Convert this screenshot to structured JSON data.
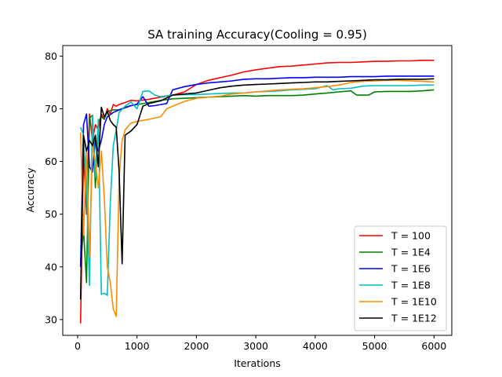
{
  "chart_data": {
    "type": "line",
    "title": "SA training Accuracy(Cooling = 0.95)",
    "xlabel": "Iterations",
    "ylabel": "Accuracy",
    "xlim": [
      -250,
      6300
    ],
    "ylim": [
      27,
      82
    ],
    "xticks": [
      0,
      1000,
      2000,
      3000,
      4000,
      5000,
      6000
    ],
    "yticks": [
      30,
      40,
      50,
      60,
      70,
      80
    ],
    "grid": false,
    "legend_position": "lower-right",
    "series": [
      {
        "name": "T = 100",
        "color": "#ff0000",
        "points": [
          [
            50,
            29.3
          ],
          [
            100,
            62
          ],
          [
            150,
            50
          ],
          [
            200,
            69
          ],
          [
            250,
            64
          ],
          [
            300,
            67
          ],
          [
            350,
            66
          ],
          [
            400,
            69
          ],
          [
            450,
            68
          ],
          [
            500,
            70
          ],
          [
            550,
            69
          ],
          [
            600,
            70.8
          ],
          [
            650,
            70.5
          ],
          [
            700,
            70.8
          ],
          [
            800,
            71.2
          ],
          [
            900,
            71.6
          ],
          [
            1000,
            71.5
          ],
          [
            1200,
            71.8
          ],
          [
            1400,
            72.2
          ],
          [
            1600,
            72.6
          ],
          [
            1800,
            73.2
          ],
          [
            2000,
            74.6
          ],
          [
            2200,
            75.4
          ],
          [
            2400,
            75.9
          ],
          [
            2600,
            76.4
          ],
          [
            2800,
            77
          ],
          [
            3000,
            77.4
          ],
          [
            3200,
            77.7
          ],
          [
            3400,
            78
          ],
          [
            3600,
            78.1
          ],
          [
            3800,
            78.3
          ],
          [
            4000,
            78.5
          ],
          [
            4200,
            78.7
          ],
          [
            4400,
            78.8
          ],
          [
            4600,
            78.8
          ],
          [
            4800,
            78.9
          ],
          [
            5000,
            79
          ],
          [
            5200,
            79
          ],
          [
            5400,
            79.1
          ],
          [
            5600,
            79.1
          ],
          [
            5800,
            79.2
          ],
          [
            6000,
            79.2
          ]
        ]
      },
      {
        "name": "T = 1E4",
        "color": "#008000",
        "points": [
          [
            50,
            40.5
          ],
          [
            100,
            47
          ],
          [
            150,
            37
          ],
          [
            200,
            68.2
          ],
          [
            250,
            68.8
          ],
          [
            300,
            55
          ],
          [
            350,
            67.5
          ],
          [
            400,
            68.5
          ],
          [
            450,
            68
          ],
          [
            500,
            69.5
          ],
          [
            600,
            69.8
          ],
          [
            700,
            69.8
          ],
          [
            800,
            70.3
          ],
          [
            900,
            70.6
          ],
          [
            1000,
            70.8
          ],
          [
            1200,
            71.2
          ],
          [
            1400,
            71.6
          ],
          [
            1600,
            71.9
          ],
          [
            1800,
            72
          ],
          [
            2000,
            72.1
          ],
          [
            2200,
            72.2
          ],
          [
            2400,
            72.3
          ],
          [
            2600,
            72.4
          ],
          [
            2800,
            72.5
          ],
          [
            3000,
            72.4
          ],
          [
            3200,
            72.5
          ],
          [
            3400,
            72.5
          ],
          [
            3600,
            72.5
          ],
          [
            3800,
            72.6
          ],
          [
            4000,
            72.8
          ],
          [
            4200,
            73
          ],
          [
            4400,
            73.2
          ],
          [
            4600,
            73.4
          ],
          [
            4700,
            72.6
          ],
          [
            4900,
            72.6
          ],
          [
            5000,
            73.2
          ],
          [
            5200,
            73.3
          ],
          [
            5400,
            73.3
          ],
          [
            5600,
            73.3
          ],
          [
            5800,
            73.4
          ],
          [
            6000,
            73.6
          ]
        ]
      },
      {
        "name": "T = 1E6",
        "color": "#0000ff",
        "points": [
          [
            50,
            40
          ],
          [
            100,
            67
          ],
          [
            150,
            69
          ],
          [
            200,
            59
          ],
          [
            250,
            58
          ],
          [
            300,
            64
          ],
          [
            350,
            62
          ],
          [
            400,
            64
          ],
          [
            450,
            67
          ],
          [
            500,
            68.5
          ],
          [
            600,
            69.3
          ],
          [
            700,
            69.8
          ],
          [
            800,
            70.2
          ],
          [
            900,
            70.6
          ],
          [
            1000,
            70.9
          ],
          [
            1100,
            72.3
          ],
          [
            1200,
            70.5
          ],
          [
            1300,
            70.6
          ],
          [
            1400,
            70.8
          ],
          [
            1500,
            71
          ],
          [
            1600,
            73.6
          ],
          [
            1800,
            74.2
          ],
          [
            2000,
            74.6
          ],
          [
            2200,
            74.9
          ],
          [
            2400,
            75.1
          ],
          [
            2600,
            75.3
          ],
          [
            2800,
            75.6
          ],
          [
            3000,
            75.7
          ],
          [
            3200,
            75.7
          ],
          [
            3400,
            75.8
          ],
          [
            3600,
            75.9
          ],
          [
            3800,
            75.9
          ],
          [
            4000,
            76
          ],
          [
            4200,
            76
          ],
          [
            4400,
            76
          ],
          [
            4600,
            76.1
          ],
          [
            4800,
            76.1
          ],
          [
            5000,
            76.1
          ],
          [
            5200,
            76.2
          ],
          [
            5400,
            76.2
          ],
          [
            5600,
            76.2
          ],
          [
            5800,
            76.2
          ],
          [
            6000,
            76.2
          ]
        ]
      },
      {
        "name": "T = 1E8",
        "color": "#00bfbf",
        "points": [
          [
            50,
            66.5
          ],
          [
            100,
            65
          ],
          [
            150,
            55
          ],
          [
            200,
            36.5
          ],
          [
            250,
            68.8
          ],
          [
            300,
            57
          ],
          [
            350,
            68
          ],
          [
            400,
            34.8
          ],
          [
            450,
            35
          ],
          [
            500,
            34.6
          ],
          [
            550,
            52
          ],
          [
            600,
            63
          ],
          [
            650,
            66
          ],
          [
            700,
            69.3
          ],
          [
            800,
            70.5
          ],
          [
            900,
            71.3
          ],
          [
            1000,
            70
          ],
          [
            1100,
            73.3
          ],
          [
            1200,
            73.4
          ],
          [
            1300,
            72.6
          ],
          [
            1400,
            72.3
          ],
          [
            1600,
            72.6
          ],
          [
            1800,
            72.7
          ],
          [
            2000,
            72.7
          ],
          [
            2200,
            72.8
          ],
          [
            2400,
            72.9
          ],
          [
            2600,
            73
          ],
          [
            2800,
            73
          ],
          [
            3000,
            73.2
          ],
          [
            3200,
            73.3
          ],
          [
            3400,
            73.4
          ],
          [
            3600,
            73.6
          ],
          [
            3800,
            73.7
          ],
          [
            4000,
            73.8
          ],
          [
            4200,
            74.4
          ],
          [
            4300,
            73.6
          ],
          [
            4400,
            73.8
          ],
          [
            4600,
            73.9
          ],
          [
            4800,
            74.3
          ],
          [
            5000,
            74.4
          ],
          [
            5200,
            74.4
          ],
          [
            5400,
            74.4
          ],
          [
            5600,
            74.4
          ],
          [
            5800,
            74.5
          ],
          [
            6000,
            74.5
          ]
        ]
      },
      {
        "name": "T = 1E10",
        "color": "#ff8c00",
        "points": [
          [
            50,
            65.5
          ],
          [
            100,
            46
          ],
          [
            150,
            62
          ],
          [
            200,
            42
          ],
          [
            250,
            63
          ],
          [
            300,
            60
          ],
          [
            350,
            55
          ],
          [
            400,
            62
          ],
          [
            450,
            53
          ],
          [
            500,
            40
          ],
          [
            550,
            37
          ],
          [
            600,
            32
          ],
          [
            650,
            30.6
          ],
          [
            700,
            57
          ],
          [
            750,
            64
          ],
          [
            800,
            66
          ],
          [
            900,
            67.3
          ],
          [
            1000,
            67.6
          ],
          [
            1200,
            68
          ],
          [
            1400,
            68.5
          ],
          [
            1500,
            70
          ],
          [
            1600,
            70.5
          ],
          [
            1800,
            71.4
          ],
          [
            2000,
            72
          ],
          [
            2200,
            72.2
          ],
          [
            2400,
            72.4
          ],
          [
            2600,
            72.8
          ],
          [
            2800,
            73
          ],
          [
            3000,
            73.2
          ],
          [
            3200,
            73.4
          ],
          [
            3400,
            73.6
          ],
          [
            3600,
            73.7
          ],
          [
            3800,
            73.8
          ],
          [
            4000,
            74
          ],
          [
            4200,
            74.2
          ],
          [
            4400,
            74.5
          ],
          [
            4600,
            75
          ],
          [
            4800,
            75.2
          ],
          [
            5000,
            75.3
          ],
          [
            5200,
            75.4
          ],
          [
            5400,
            75.4
          ],
          [
            5600,
            75.3
          ],
          [
            5800,
            75.2
          ],
          [
            6000,
            75.1
          ]
        ]
      },
      {
        "name": "T = 1E12",
        "color": "#000000",
        "points": [
          [
            50,
            33.8
          ],
          [
            100,
            65
          ],
          [
            150,
            62
          ],
          [
            200,
            64
          ],
          [
            250,
            63
          ],
          [
            300,
            65
          ],
          [
            350,
            59
          ],
          [
            400,
            70.3
          ],
          [
            450,
            68.5
          ],
          [
            500,
            69.5
          ],
          [
            550,
            67.8
          ],
          [
            600,
            67
          ],
          [
            650,
            66.5
          ],
          [
            700,
            58
          ],
          [
            750,
            40.6
          ],
          [
            800,
            65
          ],
          [
            900,
            65.8
          ],
          [
            1000,
            67
          ],
          [
            1100,
            70.5
          ],
          [
            1200,
            71
          ],
          [
            1400,
            71.5
          ],
          [
            1600,
            72.6
          ],
          [
            1800,
            72.8
          ],
          [
            2000,
            73
          ],
          [
            2200,
            73.5
          ],
          [
            2400,
            74
          ],
          [
            2600,
            74.3
          ],
          [
            2800,
            74.5
          ],
          [
            3000,
            74.6
          ],
          [
            3200,
            74.7
          ],
          [
            3400,
            74.8
          ],
          [
            3600,
            74.9
          ],
          [
            3800,
            75
          ],
          [
            4000,
            75.1
          ],
          [
            4200,
            75.1
          ],
          [
            4400,
            75.2
          ],
          [
            4600,
            75.3
          ],
          [
            4800,
            75.4
          ],
          [
            5000,
            75.5
          ],
          [
            5200,
            75.5
          ],
          [
            5400,
            75.6
          ],
          [
            5600,
            75.6
          ],
          [
            5800,
            75.6
          ],
          [
            6000,
            75.7
          ]
        ]
      }
    ]
  }
}
